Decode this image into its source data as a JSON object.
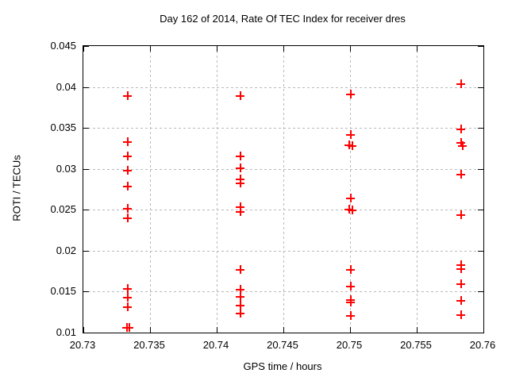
{
  "marker_color": "#ee0000",
  "grid_color": "#b9b9b9",
  "chart_data": {
    "type": "scatter",
    "title": "Day 162 of 2014, Rate Of TEC Index for receiver dres",
    "xlabel": "GPS time / hours",
    "ylabel": "ROTI / TECUs",
    "xlim": [
      20.73,
      20.76
    ],
    "ylim": [
      0.01,
      0.045
    ],
    "x_ticks": [
      "20.73",
      "20.735",
      "20.74",
      "20.745",
      "20.75",
      "20.755",
      "20.76"
    ],
    "y_ticks": [
      "0.01",
      "0.015",
      "0.02",
      "0.025",
      "0.03",
      "0.035",
      "0.04",
      "0.045"
    ],
    "grid": "dashed both axes",
    "legend": "none",
    "marker": "plus",
    "series": [
      {
        "name": "ROTI",
        "points": [
          [
            20.7333,
            0.039
          ],
          [
            20.7333,
            0.0334
          ],
          [
            20.7333,
            0.0316
          ],
          [
            20.7333,
            0.0299
          ],
          [
            20.7333,
            0.0279
          ],
          [
            20.7333,
            0.0252
          ],
          [
            20.7333,
            0.0241
          ],
          [
            20.7333,
            0.0154
          ],
          [
            20.7333,
            0.0144
          ],
          [
            20.7333,
            0.0132
          ],
          [
            20.7332,
            0.0107
          ],
          [
            20.7334,
            0.0107
          ],
          [
            20.7417,
            0.039
          ],
          [
            20.7417,
            0.0316
          ],
          [
            20.7417,
            0.0302
          ],
          [
            20.7417,
            0.0288
          ],
          [
            20.7417,
            0.0283
          ],
          [
            20.7417,
            0.0254
          ],
          [
            20.7417,
            0.0248
          ],
          [
            20.7417,
            0.0178
          ],
          [
            20.7417,
            0.0153
          ],
          [
            20.7417,
            0.0145
          ],
          [
            20.7417,
            0.0134
          ],
          [
            20.7417,
            0.0124
          ],
          [
            20.75,
            0.0392
          ],
          [
            20.75,
            0.0342
          ],
          [
            20.7499,
            0.033
          ],
          [
            20.7501,
            0.0329
          ],
          [
            20.75,
            0.0265
          ],
          [
            20.7499,
            0.0251
          ],
          [
            20.7501,
            0.025
          ],
          [
            20.75,
            0.0178
          ],
          [
            20.75,
            0.0157
          ],
          [
            20.75,
            0.0141
          ],
          [
            20.75,
            0.0138
          ],
          [
            20.75,
            0.0121
          ],
          [
            20.7583,
            0.0404
          ],
          [
            20.7583,
            0.0349
          ],
          [
            20.7583,
            0.0333
          ],
          [
            20.7584,
            0.0329
          ],
          [
            20.7583,
            0.0294
          ],
          [
            20.7583,
            0.0244
          ],
          [
            20.7583,
            0.0183
          ],
          [
            20.7583,
            0.0179
          ],
          [
            20.7583,
            0.016
          ],
          [
            20.7583,
            0.014
          ],
          [
            20.7583,
            0.0122
          ]
        ]
      }
    ]
  }
}
